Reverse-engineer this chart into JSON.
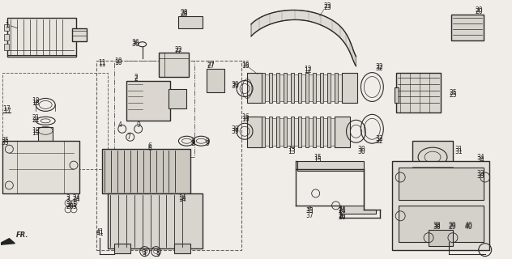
{
  "background_color": "#f0ede8",
  "line_color": "#2a2a2a",
  "label_color": "#1a1a1a",
  "dashed_color": "#666666",
  "fig_w": 6.32,
  "fig_h": 3.2,
  "dpi": 100
}
